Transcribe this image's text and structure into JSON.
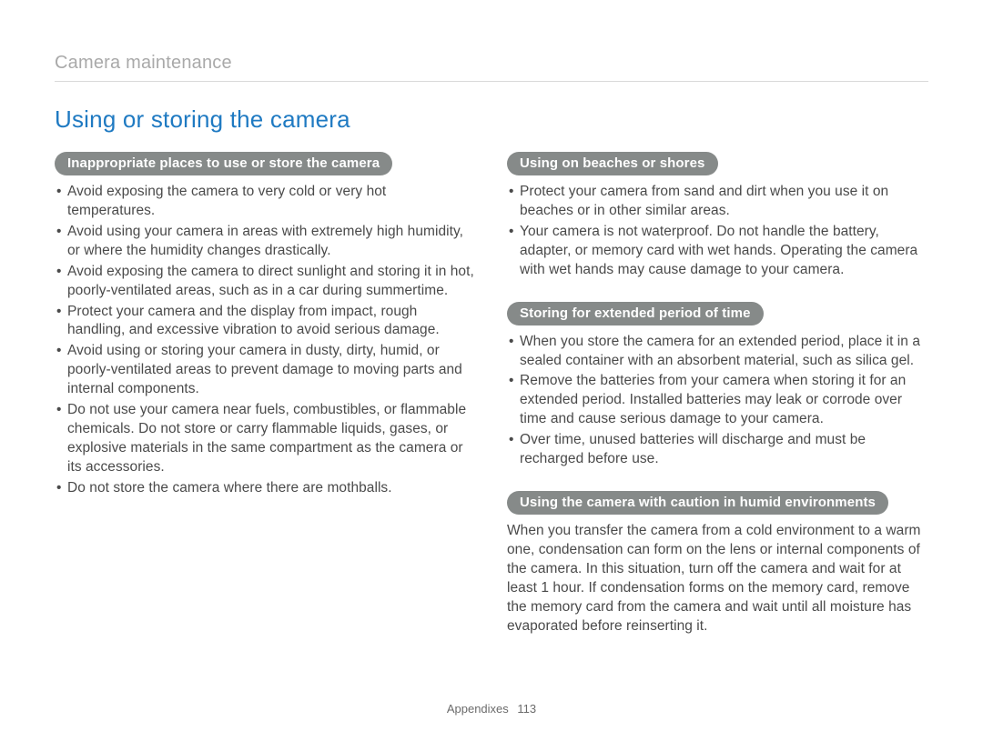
{
  "breadcrumb": "Camera maintenance",
  "heading": "Using or storing the camera",
  "left": {
    "sections": [
      {
        "title": "Inappropriate places to use or store the camera",
        "items": [
          "Avoid exposing the camera to very cold or very hot temperatures.",
          "Avoid using your camera in areas with extremely high humidity, or where the humidity changes drastically.",
          "Avoid exposing the camera to direct sunlight and storing it in hot, poorly-ventilated areas, such as in a car during summertime.",
          "Protect your camera and the display from impact, rough handling, and excessive vibration to avoid serious damage.",
          "Avoid using or storing your camera in dusty, dirty, humid, or poorly-ventilated areas to prevent damage to moving parts and internal components.",
          "Do not use your camera near fuels, combustibles, or flammable chemicals. Do not store or carry flammable liquids, gases, or explosive materials in the same compartment as the camera or its accessories.",
          "Do not store the camera where there are mothballs."
        ]
      }
    ]
  },
  "right": {
    "sections": [
      {
        "title": "Using on beaches or shores",
        "items": [
          "Protect your camera from sand and dirt when you use it on beaches or in other similar areas.",
          "Your camera is not waterproof. Do not handle the battery, adapter, or memory card with wet hands. Operating the camera with wet hands may cause damage to your camera."
        ]
      },
      {
        "title": "Storing for extended period of time",
        "items": [
          "When you store the camera for an extended period, place it in a sealed container with an absorbent material, such as silica gel.",
          "Remove the batteries from your camera when storing it for an extended period. Installed batteries may leak or corrode over time and cause serious damage to your camera.",
          "Over time, unused batteries will discharge and must be recharged before use."
        ]
      },
      {
        "title": "Using the camera with caution in humid environments",
        "para": "When you transfer the camera from a cold environment to a warm one, condensation can form on the lens or internal components of the camera. In this situation, turn off the camera and wait for at least 1 hour. If condensation forms on the memory card, remove the memory card from the camera and wait until all moisture has evaporated before reinserting it."
      }
    ]
  },
  "footer": {
    "label": "Appendixes",
    "page": "113"
  },
  "colors": {
    "heading": "#1f7ac2",
    "pill_bg": "#868a89",
    "pill_text": "#ffffff",
    "breadcrumb": "#a9a9a9",
    "body_text": "#4a4a4a",
    "rule": "#d9d9d9"
  }
}
